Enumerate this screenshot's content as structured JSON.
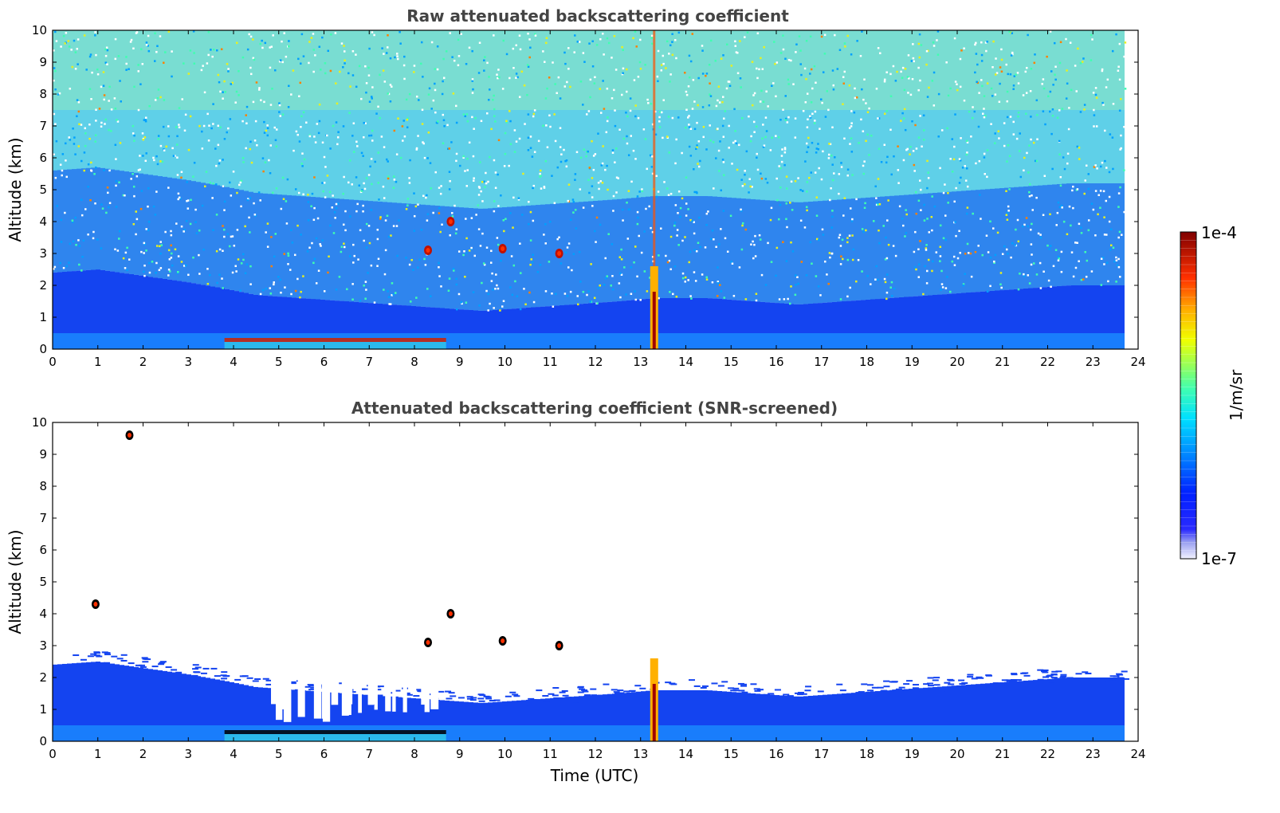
{
  "chart_data": [
    {
      "type": "heatmap",
      "title": "Raw attenuated backscattering coefficient",
      "xlabel": "",
      "ylabel": "Altitude (km)",
      "xlim": [
        0,
        24
      ],
      "ylim": [
        0,
        10
      ],
      "xticks": [
        "0",
        "1",
        "2",
        "3",
        "4",
        "5",
        "6",
        "7",
        "8",
        "9",
        "10",
        "11",
        "12",
        "13",
        "14",
        "15",
        "16",
        "17",
        "18",
        "19",
        "20",
        "21",
        "22",
        "23",
        "24"
      ],
      "yticks": [
        "0",
        "1",
        "2",
        "3",
        "4",
        "5",
        "6",
        "7",
        "8",
        "9",
        "10"
      ],
      "data_end_time": 23.7,
      "colorscale": "jet (log)",
      "screened": false,
      "boundary_layer_top_km": [
        [
          0,
          2.4
        ],
        [
          1,
          2.5
        ],
        [
          2,
          2.3
        ],
        [
          3,
          2.1
        ],
        [
          3.8,
          1.9
        ],
        [
          4.5,
          1.7
        ],
        [
          5.5,
          1.6
        ],
        [
          6.5,
          1.5
        ],
        [
          7.5,
          1.4
        ],
        [
          8.5,
          1.3
        ],
        [
          9.5,
          1.2
        ],
        [
          10.5,
          1.3
        ],
        [
          11.5,
          1.4
        ],
        [
          12.5,
          1.5
        ],
        [
          13.3,
          1.6
        ],
        [
          14.5,
          1.6
        ],
        [
          15.5,
          1.5
        ],
        [
          16.5,
          1.4
        ],
        [
          17.5,
          1.5
        ],
        [
          18.5,
          1.6
        ],
        [
          19.5,
          1.7
        ],
        [
          20.5,
          1.8
        ],
        [
          21.5,
          1.9
        ],
        [
          22.5,
          2.0
        ],
        [
          23.7,
          2.0
        ]
      ],
      "features": [
        {
          "kind": "dense_layer",
          "t_start": 3.8,
          "t_end": 8.7,
          "alt_km": 0.3
        },
        {
          "kind": "rain_column",
          "t": 13.3,
          "alt_top_km": 2.6
        },
        {
          "kind": "cloud",
          "t": 8.8,
          "alt_km": 4.0
        },
        {
          "kind": "cloud",
          "t": 8.3,
          "alt_km": 3.1
        },
        {
          "kind": "cloud",
          "t": 9.95,
          "alt_km": 3.15
        },
        {
          "kind": "cloud",
          "t": 11.2,
          "alt_km": 3.0
        }
      ]
    },
    {
      "type": "heatmap",
      "title": "Attenuated backscattering coefficient (SNR-screened)",
      "xlabel": "Time (UTC)",
      "ylabel": "Altitude (km)",
      "xlim": [
        0,
        24
      ],
      "ylim": [
        0,
        10
      ],
      "xticks": [
        "0",
        "1",
        "2",
        "3",
        "4",
        "5",
        "6",
        "7",
        "8",
        "9",
        "10",
        "11",
        "12",
        "13",
        "14",
        "15",
        "16",
        "17",
        "18",
        "19",
        "20",
        "21",
        "22",
        "23",
        "24"
      ],
      "yticks": [
        "0",
        "1",
        "2",
        "3",
        "4",
        "5",
        "6",
        "7",
        "8",
        "9",
        "10"
      ],
      "data_end_time": 23.7,
      "colorscale": "jet (log)",
      "screened": true,
      "boundary_layer_top_km": [
        [
          0,
          2.4
        ],
        [
          1,
          2.5
        ],
        [
          2,
          2.3
        ],
        [
          3,
          2.1
        ],
        [
          3.8,
          1.9
        ],
        [
          4.5,
          1.7
        ],
        [
          5.5,
          1.6
        ],
        [
          6.5,
          1.5
        ],
        [
          7.5,
          1.4
        ],
        [
          8.5,
          1.3
        ],
        [
          9.5,
          1.2
        ],
        [
          10.5,
          1.3
        ],
        [
          11.5,
          1.4
        ],
        [
          12.5,
          1.5
        ],
        [
          13.3,
          1.6
        ],
        [
          14.5,
          1.6
        ],
        [
          15.5,
          1.5
        ],
        [
          16.5,
          1.4
        ],
        [
          17.5,
          1.5
        ],
        [
          18.5,
          1.6
        ],
        [
          19.5,
          1.7
        ],
        [
          20.5,
          1.8
        ],
        [
          21.5,
          1.9
        ],
        [
          22.5,
          2.0
        ],
        [
          23.7,
          2.0
        ]
      ],
      "features": [
        {
          "kind": "dense_layer",
          "t_start": 3.8,
          "t_end": 8.7,
          "alt_km": 0.3
        },
        {
          "kind": "rain_column",
          "t": 13.3,
          "alt_top_km": 2.6
        },
        {
          "kind": "cloud",
          "t": 8.8,
          "alt_km": 4.0
        },
        {
          "kind": "cloud",
          "t": 8.3,
          "alt_km": 3.1
        },
        {
          "kind": "cloud",
          "t": 9.95,
          "alt_km": 3.15
        },
        {
          "kind": "cloud",
          "t": 11.2,
          "alt_km": 3.0
        },
        {
          "kind": "cloud",
          "t": 1.7,
          "alt_km": 9.6
        },
        {
          "kind": "cloud",
          "t": 0.95,
          "alt_km": 4.3
        }
      ]
    }
  ],
  "colorbar": {
    "max_label": "1e-4",
    "min_label": "1e-7",
    "unit": "1/m/sr",
    "scale": "log"
  },
  "colors": {
    "frame": "#000000",
    "title": "#444444"
  }
}
